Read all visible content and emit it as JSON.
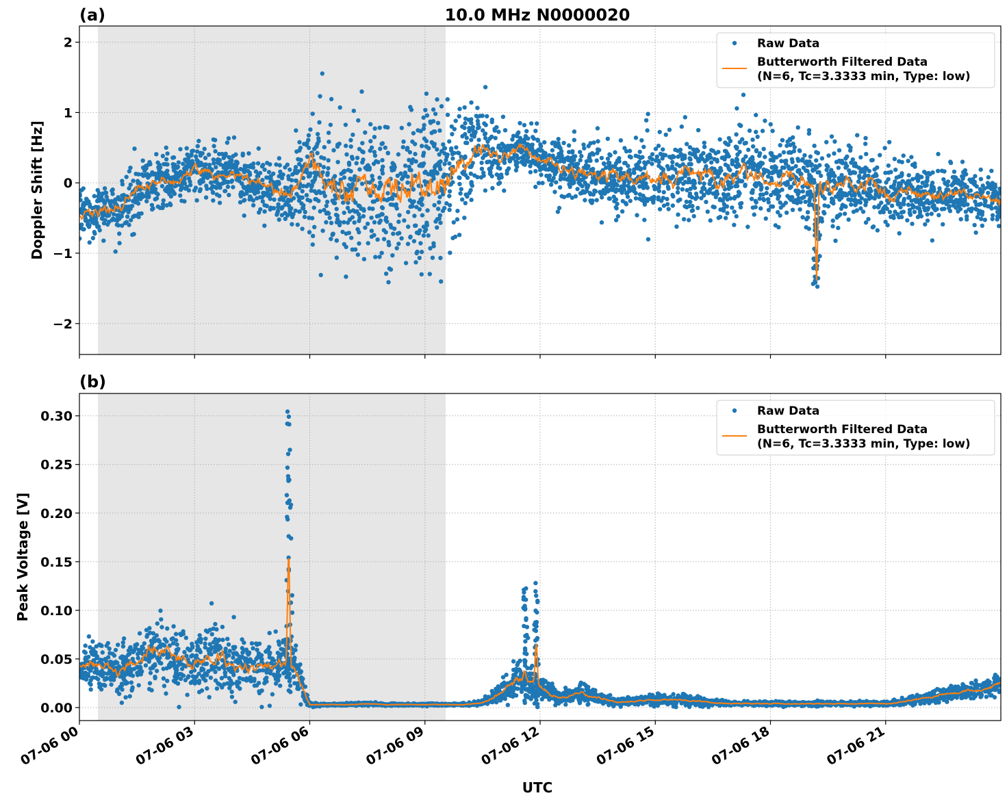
{
  "title": "10.0 MHz N0000020",
  "xlabel": "UTC",
  "x_tick_labels": [
    "07-06 00",
    "07-06 03",
    "07-06 06",
    "07-06 09",
    "07-06 12",
    "07-06 15",
    "07-06 18",
    "07-06 21"
  ],
  "colors": {
    "raw": "#1f77b4",
    "filtered": "#ff7f0e",
    "shade": "#e6e6e6"
  },
  "chart_data": [
    {
      "type": "scatter",
      "panel_label": "(a)",
      "ylabel": "Doppler Shift [Hz]",
      "xlim_hours": [
        0,
        24
      ],
      "ylim": [
        -2.44,
        2.23
      ],
      "y_ticks": [
        2,
        1,
        0,
        -1,
        -2
      ],
      "y_tick_labels": [
        "2",
        "1",
        "0",
        "−1",
        "−2"
      ],
      "grid": true,
      "shaded_interval_hours": [
        0.48,
        9.54
      ],
      "legend": {
        "placement": "top-right",
        "raw_label": "Raw Data",
        "filtered_label_1": "Butterworth Filtered Data",
        "filtered_label_2": "(N=6, Tc=3.3333 min, Type: low)"
      },
      "x_hours": [
        0,
        0.5,
        1,
        1.5,
        2,
        2.5,
        3,
        3.5,
        4,
        4.5,
        5,
        5.5,
        6,
        6.5,
        7,
        7.5,
        8,
        8.5,
        9,
        9.5,
        10,
        10.5,
        11,
        11.5,
        12,
        12.5,
        13,
        13.5,
        14,
        14.5,
        15,
        15.5,
        16,
        16.5,
        17,
        17.5,
        18,
        18.5,
        19,
        19.5,
        20,
        20.5,
        21,
        21.5,
        22,
        22.5,
        23,
        23.5,
        24
      ],
      "filtered": [
        -0.45,
        -0.4,
        -0.4,
        -0.1,
        0.05,
        0.0,
        0.2,
        0.1,
        0.15,
        0.0,
        -0.05,
        -0.25,
        0.3,
        -0.05,
        -0.1,
        -0.05,
        -0.2,
        -0.05,
        0.0,
        0.1,
        0.25,
        0.55,
        0.35,
        0.5,
        0.3,
        0.2,
        0.15,
        0.1,
        0.1,
        0.05,
        0.05,
        0.1,
        0.1,
        0.05,
        0.1,
        0.15,
        0.1,
        0.05,
        -0.05,
        -0.05,
        -0.05,
        -0.05,
        -0.1,
        -0.15,
        -0.15,
        -0.2,
        -0.15,
        -0.2,
        -0.25
      ],
      "raw_spread": [
        0.3,
        0.3,
        0.35,
        0.35,
        0.35,
        0.35,
        0.35,
        0.35,
        0.35,
        0.35,
        0.35,
        0.45,
        0.8,
        0.85,
        0.85,
        0.9,
        1.05,
        1.1,
        1.05,
        0.95,
        0.8,
        0.6,
        0.45,
        0.35,
        0.35,
        0.4,
        0.4,
        0.45,
        0.45,
        0.5,
        0.55,
        0.55,
        0.55,
        0.6,
        0.6,
        0.6,
        0.55,
        0.55,
        0.55,
        0.55,
        0.55,
        0.5,
        0.45,
        0.4,
        0.35,
        0.3,
        0.3,
        0.3,
        0.3
      ],
      "spikes": [
        {
          "x_hours": 19.2,
          "value": -1.35
        }
      ]
    },
    {
      "type": "scatter",
      "panel_label": "(b)",
      "ylabel": "Peak Voltage [V]",
      "xlim_hours": [
        0,
        24
      ],
      "ylim": [
        -0.0134,
        0.323
      ],
      "y_ticks": [
        0.3,
        0.25,
        0.2,
        0.15,
        0.1,
        0.05,
        0.0
      ],
      "y_tick_labels": [
        "0.30",
        "0.25",
        "0.20",
        "0.15",
        "0.10",
        "0.05",
        "0.00"
      ],
      "grid": true,
      "shaded_interval_hours": [
        0.48,
        9.54
      ],
      "legend": {
        "placement": "top-right",
        "raw_label": "Raw Data",
        "filtered_label_1": "Butterworth Filtered Data",
        "filtered_label_2": "(N=6, Tc=3.3333 min, Type: low)"
      },
      "x_hours": [
        0,
        0.5,
        1,
        1.5,
        2,
        2.5,
        3,
        3.5,
        4,
        4.5,
        5,
        5.5,
        6,
        6.5,
        7,
        7.5,
        8,
        8.5,
        9,
        9.5,
        10,
        10.5,
        11,
        11.5,
        12,
        12.5,
        13,
        13.5,
        14,
        14.5,
        15,
        15.5,
        16,
        16.5,
        17,
        17.5,
        18,
        18.5,
        19,
        19.5,
        20,
        20.5,
        21,
        21.5,
        22,
        22.5,
        23,
        23.5,
        24
      ],
      "filtered": [
        0.04,
        0.045,
        0.035,
        0.05,
        0.06,
        0.05,
        0.045,
        0.055,
        0.045,
        0.04,
        0.045,
        0.05,
        0.003,
        0.003,
        0.003,
        0.004,
        0.003,
        0.003,
        0.003,
        0.003,
        0.003,
        0.005,
        0.015,
        0.03,
        0.02,
        0.01,
        0.015,
        0.01,
        0.006,
        0.007,
        0.008,
        0.008,
        0.007,
        0.005,
        0.004,
        0.004,
        0.004,
        0.004,
        0.004,
        0.004,
        0.004,
        0.004,
        0.004,
        0.006,
        0.01,
        0.013,
        0.017,
        0.018,
        0.025
      ],
      "raw_spread": [
        0.02,
        0.022,
        0.02,
        0.025,
        0.03,
        0.028,
        0.03,
        0.032,
        0.028,
        0.025,
        0.025,
        0.03,
        0.002,
        0.001,
        0.001,
        0.0015,
        0.001,
        0.001,
        0.001,
        0.001,
        0.001,
        0.002,
        0.01,
        0.02,
        0.012,
        0.006,
        0.008,
        0.006,
        0.004,
        0.004,
        0.005,
        0.005,
        0.004,
        0.003,
        0.002,
        0.002,
        0.002,
        0.002,
        0.002,
        0.002,
        0.002,
        0.002,
        0.002,
        0.003,
        0.005,
        0.006,
        0.007,
        0.008,
        0.01
      ],
      "spikes": [
        {
          "x_hours": 5.45,
          "value": 0.165,
          "raw_peak": 0.308
        },
        {
          "x_hours": 11.6,
          "value": 0.04,
          "raw_peak": 0.135
        },
        {
          "x_hours": 11.9,
          "value": 0.065,
          "raw_peak": 0.13
        }
      ]
    }
  ]
}
